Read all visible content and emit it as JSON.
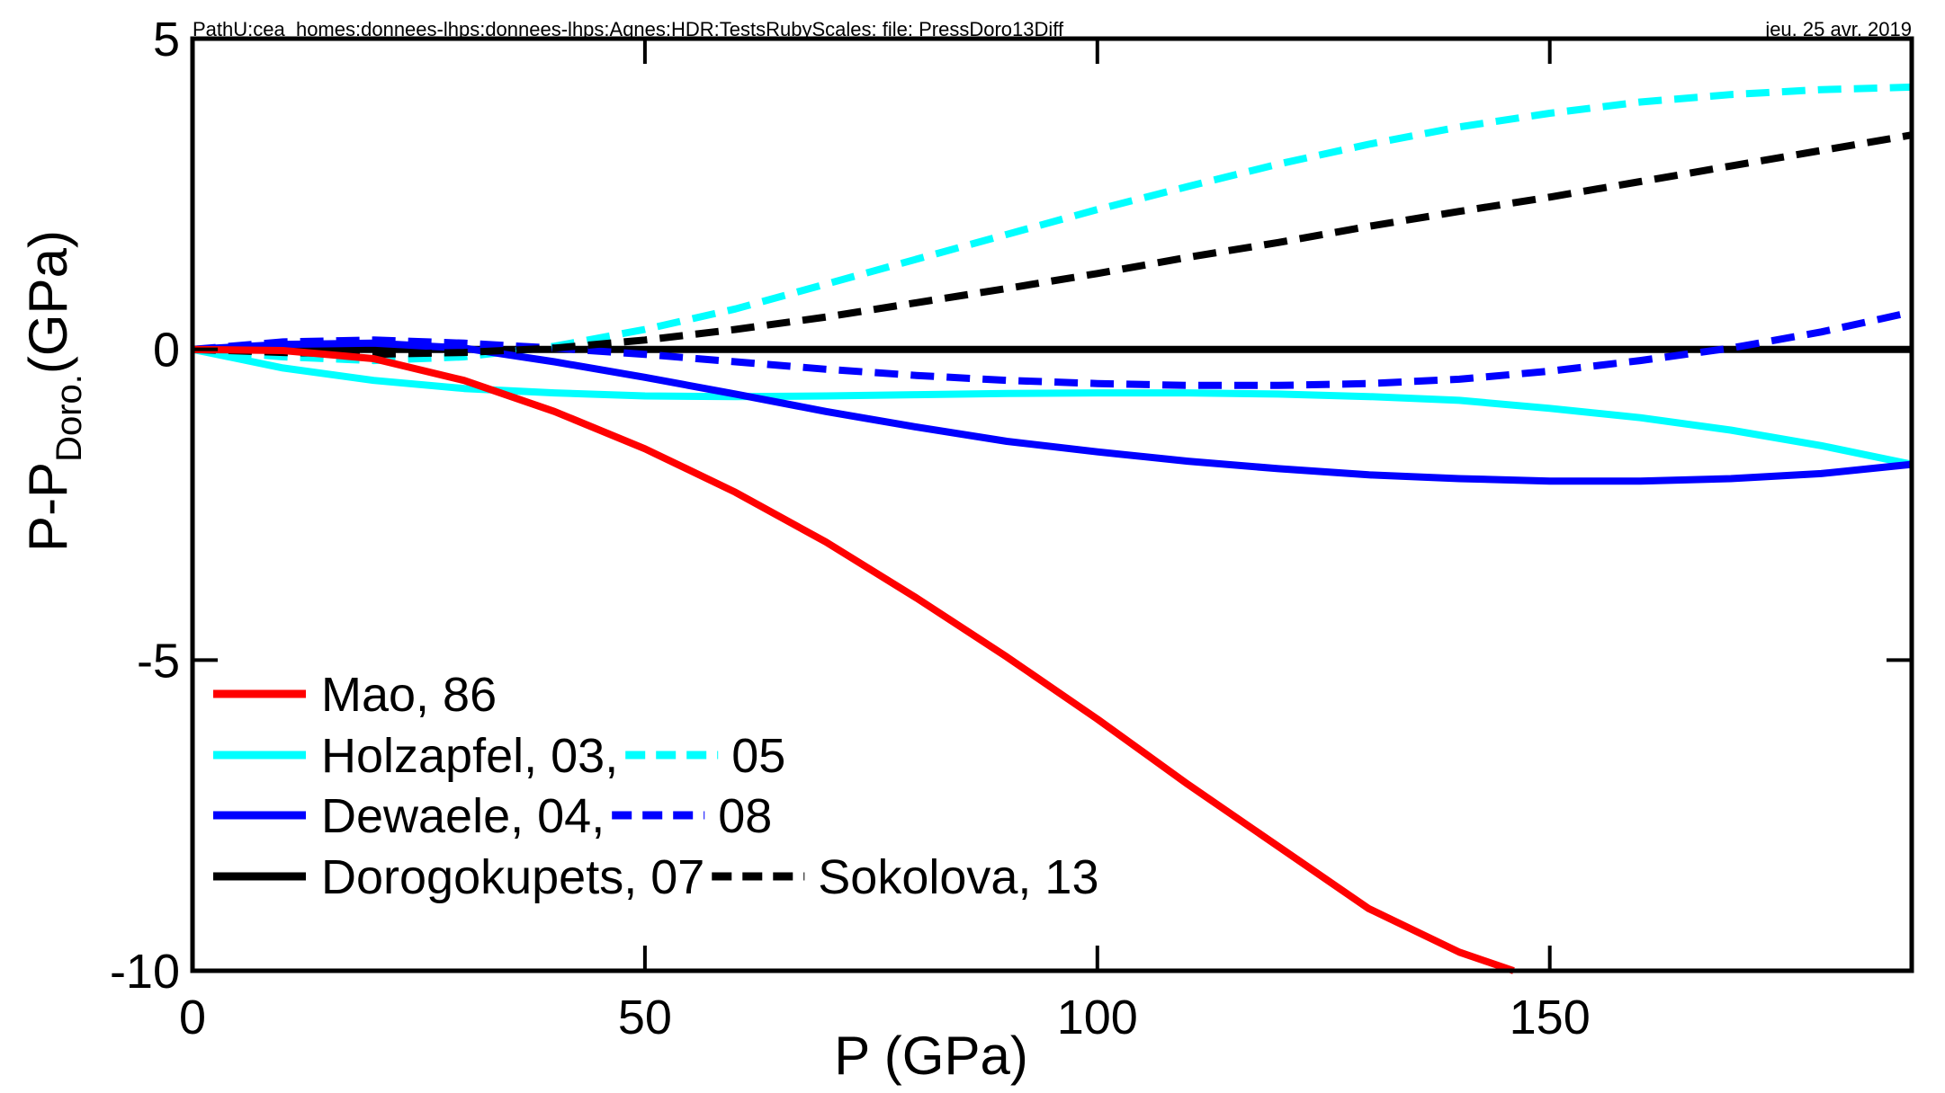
{
  "header": {
    "path": "PathU:cea_homes:donnees-lhps:donnees-lhps:Agnes:HDR:TestsRubyScales: file: PressDoro13Diff",
    "date": "jeu. 25 avr. 2019"
  },
  "chart_data": {
    "type": "line",
    "title": "",
    "xlabel": "P (GPa)",
    "ylabel": {
      "main": "P-P",
      "sub": "Doro.",
      "unit": "(GPa)"
    },
    "xlim": [
      0,
      190
    ],
    "ylim": [
      -10,
      5
    ],
    "xticks": [
      0,
      50,
      100,
      150
    ],
    "yticks": [
      5,
      0,
      -5,
      -10
    ],
    "grid": false,
    "legend_position": "bottom-left",
    "series": [
      {
        "name": "Mao, 86",
        "color": "#ff0000",
        "dash": "solid",
        "x": [
          0,
          10,
          20,
          30,
          40,
          50,
          60,
          70,
          80,
          90,
          100,
          110,
          120,
          130,
          140,
          146
        ],
        "y": [
          0,
          -0.02,
          -0.15,
          -0.5,
          -1.0,
          -1.6,
          -2.3,
          -3.1,
          -4.0,
          -4.95,
          -5.95,
          -7.0,
          -8.0,
          -9.0,
          -9.7,
          -10.0
        ]
      },
      {
        "name": "Holzapfel, 03",
        "color": "#00ffff",
        "dash": "solid",
        "x": [
          0,
          10,
          20,
          30,
          40,
          50,
          60,
          70,
          80,
          90,
          100,
          110,
          120,
          130,
          140,
          150,
          160,
          170,
          180,
          190
        ],
        "y": [
          0,
          -0.3,
          -0.5,
          -0.63,
          -0.7,
          -0.75,
          -0.76,
          -0.75,
          -0.73,
          -0.71,
          -0.7,
          -0.7,
          -0.72,
          -0.76,
          -0.82,
          -0.95,
          -1.1,
          -1.3,
          -1.55,
          -1.85
        ]
      },
      {
        "name": "05",
        "color": "#00ffff",
        "dash": "dashed",
        "x": [
          0,
          10,
          20,
          30,
          40,
          50,
          60,
          70,
          80,
          90,
          100,
          110,
          120,
          130,
          140,
          150,
          160,
          170,
          180,
          190
        ],
        "y": [
          0,
          -0.12,
          -0.18,
          -0.12,
          0.05,
          0.32,
          0.65,
          1.05,
          1.45,
          1.85,
          2.25,
          2.62,
          2.98,
          3.3,
          3.58,
          3.8,
          3.98,
          4.1,
          4.18,
          4.22
        ]
      },
      {
        "name": "Dewaele, 04",
        "color": "#0000ff",
        "dash": "solid",
        "x": [
          0,
          10,
          20,
          30,
          40,
          50,
          60,
          70,
          80,
          90,
          100,
          110,
          120,
          130,
          140,
          150,
          160,
          170,
          180,
          190
        ],
        "y": [
          0,
          0.08,
          0.1,
          0.02,
          -0.2,
          -0.45,
          -0.72,
          -1.0,
          -1.25,
          -1.48,
          -1.65,
          -1.8,
          -1.92,
          -2.02,
          -2.08,
          -2.12,
          -2.12,
          -2.08,
          -2.0,
          -1.85
        ]
      },
      {
        "name": "08",
        "color": "#0000ff",
        "dash": "dashed",
        "x": [
          0,
          10,
          20,
          30,
          40,
          50,
          60,
          70,
          80,
          90,
          100,
          110,
          120,
          130,
          140,
          150,
          160,
          170,
          180,
          190
        ],
        "y": [
          0,
          0.12,
          0.15,
          0.1,
          0.02,
          -0.08,
          -0.2,
          -0.32,
          -0.42,
          -0.5,
          -0.55,
          -0.58,
          -0.58,
          -0.55,
          -0.48,
          -0.35,
          -0.18,
          0.02,
          0.28,
          0.6
        ]
      },
      {
        "name": "Dorogokupets, 07",
        "color": "#000000",
        "dash": "solid",
        "x": [
          0,
          190
        ],
        "y": [
          0,
          0
        ]
      },
      {
        "name": "Sokolova, 13",
        "color": "#000000",
        "dash": "dashed",
        "x": [
          0,
          10,
          20,
          30,
          40,
          50,
          60,
          70,
          80,
          90,
          100,
          110,
          120,
          130,
          140,
          150,
          160,
          170,
          180,
          190
        ],
        "y": [
          0,
          -0.05,
          -0.08,
          -0.05,
          0.02,
          0.15,
          0.32,
          0.52,
          0.75,
          0.98,
          1.22,
          1.48,
          1.72,
          1.98,
          2.22,
          2.45,
          2.7,
          2.95,
          3.2,
          3.45
        ]
      }
    ],
    "legend": [
      {
        "solid": "Mao, 86",
        "solid_color": "#ff0000"
      },
      {
        "solid": "Holzapfel, 03,",
        "solid_color": "#00ffff",
        "dashed": "05",
        "dashed_color": "#00ffff"
      },
      {
        "solid": "Dewaele, 04,",
        "solid_color": "#0000ff",
        "dashed": "08",
        "dashed_color": "#0000ff"
      },
      {
        "solid": "Dorogokupets, 07",
        "solid_color": "#000000",
        "dashed": "Sokolova, 13",
        "dashed_color": "#000000"
      }
    ]
  }
}
